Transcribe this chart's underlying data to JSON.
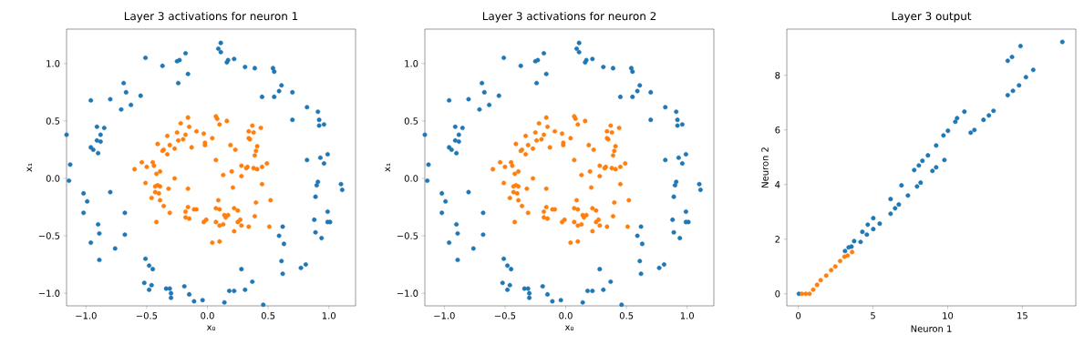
{
  "chart_data": [
    {
      "type": "scatter",
      "title": "Layer 3 activations for neuron 1",
      "xlabel": "x₀",
      "ylabel": "x₁",
      "marker": "circle",
      "xlim": [
        -1.16,
        1.22
      ],
      "ylim": [
        -1.11,
        1.3
      ],
      "xticks": [
        {
          "value": -1,
          "label": "−1.0"
        },
        {
          "value": -0.5,
          "label": "−0.5"
        },
        {
          "value": 0,
          "label": "0.0"
        },
        {
          "value": 0.5,
          "label": "0.5"
        },
        {
          "value": 1,
          "label": "1.0"
        }
      ],
      "yticks": [
        {
          "value": -1,
          "label": "−1.0"
        },
        {
          "value": -0.5,
          "label": "−0.5"
        },
        {
          "value": 0,
          "label": "0.0"
        },
        {
          "value": 0.5,
          "label": "0.5"
        },
        {
          "value": 1,
          "label": "1.0"
        }
      ],
      "series": [
        {
          "color": "#1f77b4",
          "x": [
            -1.16,
            -1.13,
            -1.14,
            -0.96,
            -0.91,
            -0.85,
            -0.91,
            -0.88,
            -0.88,
            -0.96,
            -0.94,
            -0.9,
            -0.8,
            -0.71,
            -0.69,
            -0.67,
            -0.63,
            -0.55,
            -0.51,
            -0.37,
            -0.25,
            -0.23,
            -0.18,
            -0.24,
            -0.16,
            0.11,
            0.09,
            0.11,
            0.16,
            0.17,
            0.22,
            0.31,
            0.39,
            0.45,
            0.54,
            0.55,
            0.55,
            0.59,
            0.61,
            0.7,
            0.7,
            0.82,
            0.91,
            0.92,
            0.92,
            0.96,
            0.99,
            0.93,
            0.82,
            0.96,
            0.91,
            0.9,
            0.89,
            1.1,
            1.11,
            0.99,
            0.99,
            1.01,
            0.88,
            0.89,
            0.94,
            0.62,
            0.59,
            0.63,
            0.61,
            0.62,
            0.81,
            0.77,
            0.37,
            0.31,
            0.28,
            0.18,
            0.22,
            0.14,
            0.46,
            -0.04,
            -0.11,
            -0.15,
            -0.19,
            -0.3,
            -0.3,
            -0.34,
            -0.31,
            -0.46,
            -0.48,
            -0.52,
            -0.51,
            -0.48,
            -0.45,
            -0.76,
            -0.68,
            -0.68,
            -0.8,
            -1.02,
            -0.99,
            -1.02,
            -0.9,
            -0.89,
            -0.96,
            -0.89
          ],
          "values": [
            0.38,
            0.12,
            -0.02,
            0.68,
            0.45,
            0.44,
            0.33,
            0.32,
            0.38,
            0.27,
            0.25,
            0.22,
            0.69,
            0.6,
            0.83,
            0.75,
            0.64,
            0.72,
            1.05,
            0.98,
            1.02,
            1.03,
            1.09,
            0.83,
            0.91,
            1.18,
            1.13,
            1.1,
            1.01,
            1.03,
            1.04,
            0.97,
            0.96,
            0.71,
            0.96,
            0.93,
            0.71,
            0.76,
            0.81,
            0.75,
            0.51,
            0.62,
            0.58,
            0.51,
            0.46,
            0.47,
            0.21,
            0.18,
            0.16,
            0.13,
            -0.03,
            -0.06,
            -0.16,
            -0.05,
            -0.1,
            -0.29,
            -0.38,
            -0.38,
            -0.36,
            -0.47,
            -0.52,
            -0.42,
            -0.5,
            -0.57,
            -0.72,
            -0.83,
            -0.75,
            -0.78,
            -0.9,
            -0.97,
            -0.79,
            -0.98,
            -0.98,
            -1.08,
            -1.1,
            -1.06,
            -1.07,
            -1.01,
            -0.94,
            -1.0,
            -1.04,
            -0.96,
            -0.96,
            -0.93,
            -0.97,
            -0.91,
            -0.7,
            -0.76,
            -0.79,
            -0.61,
            -0.49,
            -0.3,
            -0.12,
            -0.13,
            -0.2,
            -0.3,
            -0.4,
            -0.48,
            -0.56,
            -0.71
          ]
        },
        {
          "color": "#ff7f0e",
          "x": [
            -0.6,
            -0.54,
            -0.5,
            -0.51,
            -0.46,
            -0.45,
            -0.44,
            -0.42,
            -0.39,
            -0.43,
            -0.41,
            -0.39,
            -0.43,
            -0.4,
            -0.39,
            -0.36,
            -0.31,
            -0.32,
            -0.27,
            -0.42,
            -0.41,
            -0.37,
            -0.36,
            -0.33,
            -0.31,
            -0.33,
            -0.27,
            -0.25,
            -0.24,
            -0.22,
            -0.2,
            -0.18,
            -0.16,
            -0.15,
            -0.13,
            -0.09,
            -0.03,
            -0.02,
            -0.02,
            0.04,
            0.07,
            0.08,
            0.1,
            0.16,
            0.07,
            0.13,
            0.19,
            0.23,
            0.21,
            0.2,
            0.28,
            0.28,
            0.32,
            0.33,
            0.34,
            0.34,
            0.35,
            0.37,
            0.38,
            0.44,
            0.41,
            0.4,
            0.39,
            0.38,
            0.41,
            0.45,
            0.49,
            0.45,
            0.4,
            0.52,
            0.39,
            0.51,
            0.34,
            0.28,
            0.27,
            0.25,
            0.22,
            0.25,
            0.22,
            0.17,
            0.14,
            0.15,
            0.13,
            0.1,
            0.07,
            0.09,
            0.07,
            0.1,
            0.1,
            0.04,
            -0.01,
            -0.03,
            -0.09,
            -0.11,
            -0.16,
            -0.18,
            -0.18,
            -0.15,
            -0.16
          ],
          "values": [
            0.08,
            0.14,
            0.1,
            -0.04,
            -0.17,
            0.14,
            0.11,
            0.04,
            0.06,
            -0.07,
            -0.06,
            -0.07,
            -0.12,
            -0.13,
            -0.19,
            -0.24,
            -0.3,
            -0.09,
            0.0,
            -0.38,
            0.3,
            0.24,
            0.25,
            0.37,
            0.29,
            0.21,
            0.26,
            0.4,
            0.33,
            0.48,
            0.34,
            0.38,
            0.53,
            0.45,
            0.27,
            0.41,
            0.39,
            0.31,
            0.29,
            0.35,
            0.54,
            0.52,
            0.47,
            0.5,
            0.16,
            0.03,
            0.29,
            0.25,
            -0.08,
            0.06,
            0.02,
            0.11,
            0.09,
            0.1,
            0.35,
            0.41,
            0.34,
            0.46,
            0.4,
            0.44,
            0.28,
            0.24,
            0.2,
            0.09,
            0.08,
            0.1,
            0.13,
            -0.05,
            -0.21,
            -0.19,
            -0.33,
            -0.42,
            -0.42,
            -0.41,
            -0.36,
            -0.28,
            -0.26,
            -0.38,
            -0.46,
            -0.32,
            -0.32,
            -0.34,
            -0.4,
            -0.41,
            -0.38,
            -0.19,
            -0.26,
            -0.27,
            -0.55,
            -0.56,
            -0.36,
            -0.38,
            -0.27,
            -0.27,
            -0.25,
            -0.29,
            -0.34,
            -0.35,
            -0.09
          ]
        }
      ]
    },
    {
      "type": "scatter",
      "title": "Layer 3 activations for neuron 2",
      "xlabel": "x₀",
      "ylabel": "x₁",
      "marker": "circle",
      "xlim": [
        -1.16,
        1.22
      ],
      "ylim": [
        -1.11,
        1.3
      ],
      "xticks": [
        {
          "value": -1,
          "label": "−1.0"
        },
        {
          "value": -0.5,
          "label": "−0.5"
        },
        {
          "value": 0,
          "label": "0.0"
        },
        {
          "value": 0.5,
          "label": "0.5"
        },
        {
          "value": 1,
          "label": "1.0"
        }
      ],
      "yticks": [
        {
          "value": -1,
          "label": "−1.0"
        },
        {
          "value": -0.5,
          "label": "−0.5"
        },
        {
          "value": 0,
          "label": "0.0"
        },
        {
          "value": 0.5,
          "label": "0.5"
        },
        {
          "value": 1,
          "label": "1.0"
        }
      ],
      "series": [
        {
          "color": "#1f77b4",
          "x": [
            -1.16,
            -1.13,
            -1.14,
            -0.96,
            -0.91,
            -0.85,
            -0.91,
            -0.88,
            -0.88,
            -0.96,
            -0.94,
            -0.9,
            -0.8,
            -0.71,
            -0.69,
            -0.67,
            -0.63,
            -0.55,
            -0.51,
            -0.37,
            -0.25,
            -0.23,
            -0.18,
            -0.24,
            -0.16,
            0.11,
            0.09,
            0.11,
            0.16,
            0.17,
            0.22,
            0.31,
            0.39,
            0.45,
            0.54,
            0.55,
            0.55,
            0.59,
            0.61,
            0.7,
            0.7,
            0.82,
            0.91,
            0.92,
            0.92,
            0.96,
            0.99,
            0.93,
            0.82,
            0.96,
            0.91,
            0.9,
            0.89,
            1.1,
            1.11,
            0.99,
            0.99,
            1.01,
            0.88,
            0.89,
            0.94,
            0.62,
            0.59,
            0.63,
            0.61,
            0.62,
            0.81,
            0.77,
            0.37,
            0.31,
            0.28,
            0.18,
            0.22,
            0.14,
            0.46,
            -0.04,
            -0.11,
            -0.15,
            -0.19,
            -0.3,
            -0.3,
            -0.34,
            -0.31,
            -0.46,
            -0.48,
            -0.52,
            -0.51,
            -0.48,
            -0.45,
            -0.76,
            -0.68,
            -0.68,
            -0.8,
            -1.02,
            -0.99,
            -1.02,
            -0.9,
            -0.89,
            -0.96,
            -0.89
          ],
          "values": [
            0.38,
            0.12,
            -0.02,
            0.68,
            0.45,
            0.44,
            0.33,
            0.32,
            0.38,
            0.27,
            0.25,
            0.22,
            0.69,
            0.6,
            0.83,
            0.75,
            0.64,
            0.72,
            1.05,
            0.98,
            1.02,
            1.03,
            1.09,
            0.83,
            0.91,
            1.18,
            1.13,
            1.1,
            1.01,
            1.03,
            1.04,
            0.97,
            0.96,
            0.71,
            0.96,
            0.93,
            0.71,
            0.76,
            0.81,
            0.75,
            0.51,
            0.62,
            0.58,
            0.51,
            0.46,
            0.47,
            0.21,
            0.18,
            0.16,
            0.13,
            -0.03,
            -0.06,
            -0.16,
            -0.05,
            -0.1,
            -0.29,
            -0.38,
            -0.38,
            -0.36,
            -0.47,
            -0.52,
            -0.42,
            -0.5,
            -0.57,
            -0.72,
            -0.83,
            -0.75,
            -0.78,
            -0.9,
            -0.97,
            -0.79,
            -0.98,
            -0.98,
            -1.08,
            -1.1,
            -1.06,
            -1.07,
            -1.01,
            -0.94,
            -1.0,
            -1.04,
            -0.96,
            -0.96,
            -0.93,
            -0.97,
            -0.91,
            -0.7,
            -0.76,
            -0.79,
            -0.61,
            -0.49,
            -0.3,
            -0.12,
            -0.13,
            -0.2,
            -0.3,
            -0.4,
            -0.48,
            -0.56,
            -0.71
          ]
        },
        {
          "color": "#ff7f0e",
          "x": [
            -0.6,
            -0.54,
            -0.5,
            -0.51,
            -0.46,
            -0.45,
            -0.44,
            -0.42,
            -0.39,
            -0.43,
            -0.41,
            -0.39,
            -0.43,
            -0.4,
            -0.39,
            -0.36,
            -0.31,
            -0.32,
            -0.27,
            -0.42,
            -0.41,
            -0.37,
            -0.36,
            -0.33,
            -0.31,
            -0.33,
            -0.27,
            -0.25,
            -0.24,
            -0.22,
            -0.2,
            -0.18,
            -0.16,
            -0.15,
            -0.13,
            -0.09,
            -0.03,
            -0.02,
            -0.02,
            0.04,
            0.07,
            0.08,
            0.1,
            0.16,
            0.07,
            0.13,
            0.19,
            0.23,
            0.21,
            0.2,
            0.28,
            0.28,
            0.32,
            0.33,
            0.34,
            0.34,
            0.35,
            0.37,
            0.38,
            0.44,
            0.41,
            0.4,
            0.39,
            0.38,
            0.41,
            0.45,
            0.49,
            0.45,
            0.4,
            0.52,
            0.39,
            0.51,
            0.34,
            0.28,
            0.27,
            0.25,
            0.22,
            0.25,
            0.22,
            0.17,
            0.14,
            0.15,
            0.13,
            0.1,
            0.07,
            0.09,
            0.07,
            0.1,
            0.1,
            0.04,
            -0.01,
            -0.03,
            -0.09,
            -0.11,
            -0.16,
            -0.18,
            -0.18,
            -0.15,
            -0.16
          ],
          "values": [
            0.08,
            0.14,
            0.1,
            -0.04,
            -0.17,
            0.14,
            0.11,
            0.04,
            0.06,
            -0.07,
            -0.06,
            -0.07,
            -0.12,
            -0.13,
            -0.19,
            -0.24,
            -0.3,
            -0.09,
            0.0,
            -0.38,
            0.3,
            0.24,
            0.25,
            0.37,
            0.29,
            0.21,
            0.26,
            0.4,
            0.33,
            0.48,
            0.34,
            0.38,
            0.53,
            0.45,
            0.27,
            0.41,
            0.39,
            0.31,
            0.29,
            0.35,
            0.54,
            0.52,
            0.47,
            0.5,
            0.16,
            0.03,
            0.29,
            0.25,
            -0.08,
            0.06,
            0.02,
            0.11,
            0.09,
            0.1,
            0.35,
            0.41,
            0.34,
            0.46,
            0.4,
            0.44,
            0.28,
            0.24,
            0.2,
            0.09,
            0.08,
            0.1,
            0.13,
            -0.05,
            -0.21,
            -0.19,
            -0.33,
            -0.42,
            -0.42,
            -0.41,
            -0.36,
            -0.28,
            -0.26,
            -0.38,
            -0.46,
            -0.32,
            -0.32,
            -0.34,
            -0.4,
            -0.41,
            -0.38,
            -0.19,
            -0.26,
            -0.27,
            -0.55,
            -0.56,
            -0.36,
            -0.38,
            -0.27,
            -0.27,
            -0.25,
            -0.29,
            -0.34,
            -0.35,
            -0.09
          ]
        }
      ]
    },
    {
      "type": "scatter",
      "title": "Layer 3 output",
      "xlabel": "Neuron 1",
      "ylabel": "Neuron 2",
      "marker": "circle",
      "xlim": [
        -0.77,
        18.58
      ],
      "ylim": [
        -0.44,
        9.69
      ],
      "xticks": [
        0,
        5,
        10,
        15
      ],
      "yticks": [
        0,
        2,
        4,
        6,
        8
      ],
      "series": [
        {
          "color": "#1f77b4",
          "x": [
            0.04,
            17.68,
            14.88,
            14.02,
            14.31,
            15.73,
            15.24,
            14.02,
            14.78,
            14.37,
            13.07,
            12.4,
            12.76,
            11.79,
            11.54,
            11.12,
            10.63,
            10.51,
            10.02,
            9.72,
            9.23,
            9.78,
            9.23,
            8.98,
            8.68,
            8.31,
            8.07,
            7.76,
            8.19,
            7.95,
            6.91,
            7.34,
            6.18,
            6.73,
            6.48,
            6.18,
            5.02,
            5.45,
            5.02,
            4.65,
            4.29,
            4.59,
            4.17,
            3.74,
            3.56,
            3.13,
            3.37
          ],
          "values": [
            0,
            9.22,
            9.07,
            8.53,
            8.67,
            8.2,
            7.93,
            7.27,
            7.63,
            7.43,
            6.7,
            6.37,
            6.53,
            6.0,
            5.9,
            6.67,
            6.43,
            6.3,
            5.97,
            5.8,
            5.43,
            4.9,
            4.63,
            4.5,
            5.07,
            4.87,
            4.7,
            4.53,
            4.07,
            3.93,
            3.97,
            3.6,
            3.47,
            3.27,
            3.13,
            2.93,
            2.77,
            2.57,
            2.37,
            2.53,
            2.27,
            2.17,
            1.9,
            1.93,
            1.73,
            1.57,
            1.7
          ]
        },
        {
          "color": "#ff7f0e",
          "x": [
            0.24,
            0.5,
            0.75,
            1.0,
            1.26,
            1.5,
            1.87,
            2.2,
            2.48,
            2.8,
            3.09,
            3.3,
            3.6
          ],
          "values": [
            0,
            0,
            0,
            0.15,
            0.33,
            0.5,
            0.67,
            0.87,
            1.0,
            1.2,
            1.36,
            1.4,
            1.53
          ]
        }
      ]
    }
  ]
}
